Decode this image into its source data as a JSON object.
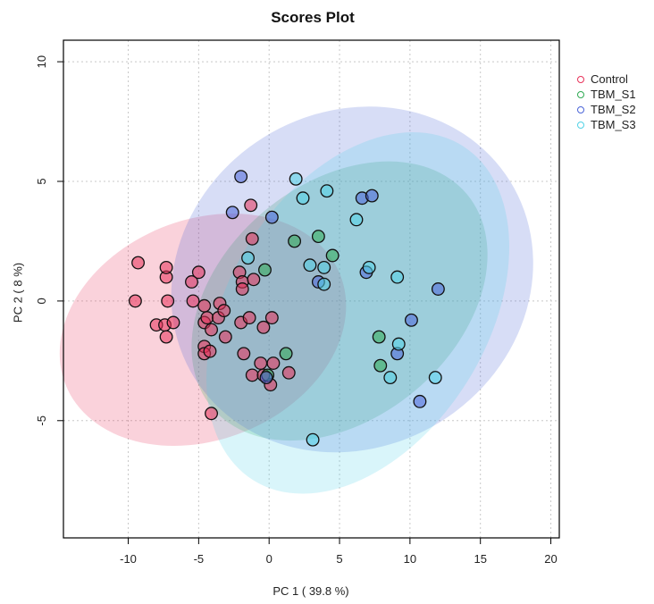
{
  "chart_data": {
    "type": "scatter",
    "title": "Scores Plot",
    "xlabel": "PC 1 ( 39.8 %)",
    "ylabel": "PC 2 ( 8 %)",
    "xlim": [
      -14.6,
      20.6
    ],
    "ylim": [
      -9.9,
      10.9
    ],
    "xticks": [
      -10,
      -5,
      0,
      5,
      10,
      15,
      20
    ],
    "yticks": [
      -5,
      0,
      5,
      10
    ],
    "grid": true,
    "legend_position": "right",
    "series": [
      {
        "name": "Control",
        "color": "#e8325a",
        "ellipse": {
          "cx": -4.7,
          "cy": -1.2,
          "rx": 10.5,
          "ry": 4.6,
          "angle": -22
        },
        "points": [
          [
            -9.3,
            1.6
          ],
          [
            -9.5,
            0
          ],
          [
            -8,
            -1
          ],
          [
            -7.4,
            -1
          ],
          [
            -7.3,
            -1.5
          ],
          [
            -6.8,
            -0.9
          ],
          [
            -7.3,
            1
          ],
          [
            -7.3,
            1.4
          ],
          [
            -7.2,
            0
          ],
          [
            -5.5,
            0.8
          ],
          [
            -5,
            1.2
          ],
          [
            -5.4,
            0
          ],
          [
            -4.6,
            -0.2
          ],
          [
            -4.6,
            -0.9
          ],
          [
            -4.4,
            -0.7
          ],
          [
            -4.1,
            -1.2
          ],
          [
            -3.6,
            -0.7
          ],
          [
            -3.5,
            -0.1
          ],
          [
            -3.2,
            -0.4
          ],
          [
            -3.1,
            -1.5
          ],
          [
            -4.6,
            -1.9
          ],
          [
            -4.6,
            -2.2
          ],
          [
            -4.2,
            -2.1
          ],
          [
            -4.1,
            -4.7
          ],
          [
            -2.1,
            1.2
          ],
          [
            -1.9,
            0.8
          ],
          [
            -1.9,
            0.5
          ],
          [
            -2,
            -0.9
          ],
          [
            -1.4,
            -0.7
          ],
          [
            -1.1,
            0.9
          ],
          [
            -1.2,
            2.6
          ],
          [
            -1.3,
            4
          ],
          [
            -1.8,
            -2.2
          ],
          [
            -1.2,
            -3.1
          ],
          [
            -0.6,
            -2.6
          ],
          [
            -0.4,
            -1.1
          ],
          [
            0.2,
            -0.7
          ],
          [
            0.3,
            -2.6
          ],
          [
            0.1,
            -3.5
          ],
          [
            1.4,
            -3
          ],
          [
            -0.4,
            -3.1
          ]
        ]
      },
      {
        "name": "TBM_S1",
        "color": "#2eaa52",
        "ellipse": {
          "cx": 5.0,
          "cy": 0.0,
          "rx": 11.8,
          "ry": 4.9,
          "angle": -40
        },
        "points": [
          [
            -0.3,
            1.3
          ],
          [
            1.8,
            2.5
          ],
          [
            3.5,
            2.7
          ],
          [
            4.5,
            1.9
          ],
          [
            1.2,
            -2.2
          ],
          [
            7.8,
            -1.5
          ],
          [
            7.9,
            -2.7
          ],
          [
            -0.1,
            -3.1
          ]
        ]
      },
      {
        "name": "TBM_S2",
        "color": "#4a64d8",
        "ellipse": {
          "cx": 5.9,
          "cy": 0.9,
          "rx": 13.2,
          "ry": 7.0,
          "angle": -32
        },
        "points": [
          [
            -2,
            5.2
          ],
          [
            -2.6,
            3.7
          ],
          [
            0.2,
            3.5
          ],
          [
            6.6,
            4.3
          ],
          [
            7.3,
            4.4
          ],
          [
            3.5,
            0.8
          ],
          [
            6.9,
            1.2
          ],
          [
            12,
            0.5
          ],
          [
            10.1,
            -0.8
          ],
          [
            9.1,
            -2.2
          ],
          [
            10.7,
            -4.2
          ],
          [
            -0.2,
            -3.2
          ]
        ]
      },
      {
        "name": "TBM_S3",
        "color": "#50d2e6",
        "ellipse": {
          "cx": 6.3,
          "cy": -0.5,
          "rx": 14.0,
          "ry": 5.4,
          "angle": -58
        },
        "points": [
          [
            1.9,
            5.1
          ],
          [
            2.4,
            4.3
          ],
          [
            4.1,
            4.6
          ],
          [
            6.2,
            3.4
          ],
          [
            -1.5,
            1.8
          ],
          [
            2.9,
            1.5
          ],
          [
            3.9,
            1.4
          ],
          [
            3.9,
            0.7
          ],
          [
            7.1,
            1.4
          ],
          [
            9.1,
            1
          ],
          [
            9.2,
            -1.8
          ],
          [
            8.6,
            -3.2
          ],
          [
            11.8,
            -3.2
          ],
          [
            3.1,
            -5.8
          ]
        ]
      }
    ]
  }
}
